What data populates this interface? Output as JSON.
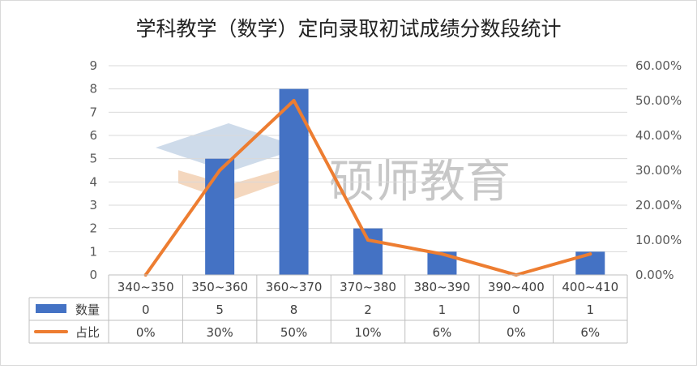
{
  "watermark_text": "硕师教育",
  "chart_data": {
    "type": "bar",
    "title": "学科教学（数学）定向录取初试成绩分数段统计",
    "categories": [
      "340~350",
      "350~360",
      "360~370",
      "370~380",
      "380~390",
      "390~400",
      "400~410"
    ],
    "series": [
      {
        "name": "数量",
        "type": "bar",
        "axis": "left",
        "color": "#4472C4",
        "values": [
          0,
          5,
          8,
          2,
          1,
          0,
          1
        ],
        "table_labels": [
          "0",
          "5",
          "8",
          "2",
          "1",
          "0",
          "1"
        ]
      },
      {
        "name": "占比",
        "type": "line",
        "axis": "right",
        "color": "#ED7D31",
        "values": [
          0,
          30,
          50,
          10,
          6,
          0,
          6
        ],
        "table_labels": [
          "0%",
          "30%",
          "50%",
          "10%",
          "6%",
          "0%",
          "6%"
        ]
      }
    ],
    "y_left": {
      "min": 0,
      "max": 9,
      "ticks": [
        0,
        1,
        2,
        3,
        4,
        5,
        6,
        7,
        8,
        9
      ]
    },
    "y_right": {
      "min": 0,
      "max": 60,
      "ticks": [
        "0.00%",
        "10.00%",
        "20.00%",
        "30.00%",
        "40.00%",
        "50.00%",
        "60.00%"
      ]
    },
    "grid": true,
    "legend": "data-table"
  }
}
